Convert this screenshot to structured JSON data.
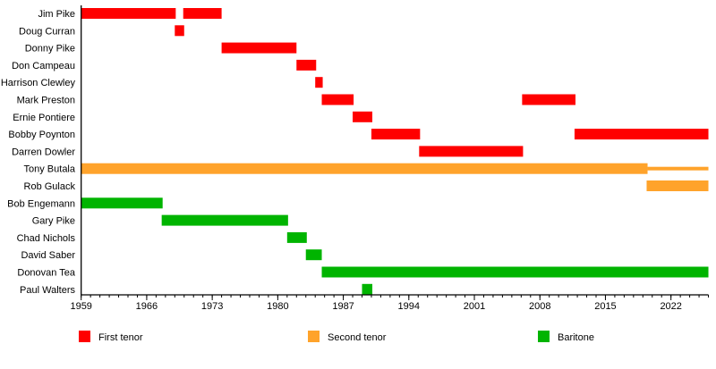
{
  "chart_data": {
    "type": "timeline",
    "xlim": [
      1959,
      2026
    ],
    "ticks": [
      1959,
      1966,
      1973,
      1980,
      1987,
      1994,
      2001,
      2008,
      2015,
      2022
    ],
    "minor_tick_step": 1,
    "grid": false,
    "legend_position": "bottom",
    "roles": [
      {
        "name": "First tenor",
        "color": "#ff0000"
      },
      {
        "name": "Second tenor",
        "color": "#ffa32b"
      },
      {
        "name": "Baritone",
        "color": "#00b400"
      }
    ],
    "members": [
      {
        "name": "Jim Pike",
        "spans": [
          {
            "role": 0,
            "start": 1959,
            "end": 1969.1
          },
          {
            "role": 0,
            "start": 1969.9,
            "end": 1974
          }
        ]
      },
      {
        "name": "Doug Curran",
        "spans": [
          {
            "role": 0,
            "start": 1969,
            "end": 1970
          }
        ]
      },
      {
        "name": "Donny Pike",
        "spans": [
          {
            "role": 0,
            "start": 1974,
            "end": 1982
          }
        ]
      },
      {
        "name": "Don Campeau",
        "spans": [
          {
            "role": 0,
            "start": 1982,
            "end": 1984.1
          }
        ]
      },
      {
        "name": "Harrison Clewley",
        "spans": [
          {
            "role": 0,
            "start": 1984,
            "end": 1984.8
          }
        ]
      },
      {
        "name": "Mark Preston",
        "spans": [
          {
            "role": 0,
            "start": 1984.7,
            "end": 1988.1
          },
          {
            "role": 0,
            "start": 2006.1,
            "end": 2011.8
          }
        ]
      },
      {
        "name": "Ernie Pontiere",
        "spans": [
          {
            "role": 0,
            "start": 1988,
            "end": 1990.1
          }
        ]
      },
      {
        "name": "Bobby Poynton",
        "spans": [
          {
            "role": 0,
            "start": 1990,
            "end": 1995.2
          },
          {
            "role": 0,
            "start": 2011.7,
            "end": 2026
          }
        ]
      },
      {
        "name": "Darren Dowler",
        "spans": [
          {
            "role": 0,
            "start": 1995.1,
            "end": 2006.2
          }
        ]
      },
      {
        "name": "Tony Butala",
        "spans": [
          {
            "role": 1,
            "start": 1959,
            "end": 2019.5
          },
          {
            "role": 1,
            "start": 2019.5,
            "end": 2026,
            "thin": true
          }
        ]
      },
      {
        "name": "Rob Gulack",
        "spans": [
          {
            "role": 1,
            "start": 2019.4,
            "end": 2026
          }
        ]
      },
      {
        "name": "Bob Engemann",
        "spans": [
          {
            "role": 2,
            "start": 1959,
            "end": 1967.7
          }
        ]
      },
      {
        "name": "Gary Pike",
        "spans": [
          {
            "role": 2,
            "start": 1967.6,
            "end": 1981.1
          }
        ]
      },
      {
        "name": "Chad Nichols",
        "spans": [
          {
            "role": 2,
            "start": 1981,
            "end": 1983.1
          }
        ]
      },
      {
        "name": "David Saber",
        "spans": [
          {
            "role": 2,
            "start": 1983,
            "end": 1984.7
          }
        ]
      },
      {
        "name": "Donovan Tea",
        "spans": [
          {
            "role": 2,
            "start": 1984.7,
            "end": 2026
          }
        ]
      },
      {
        "name": "Paul Walters",
        "spans": [
          {
            "role": 2,
            "start": 1989,
            "end": 1990.1
          }
        ]
      }
    ]
  }
}
